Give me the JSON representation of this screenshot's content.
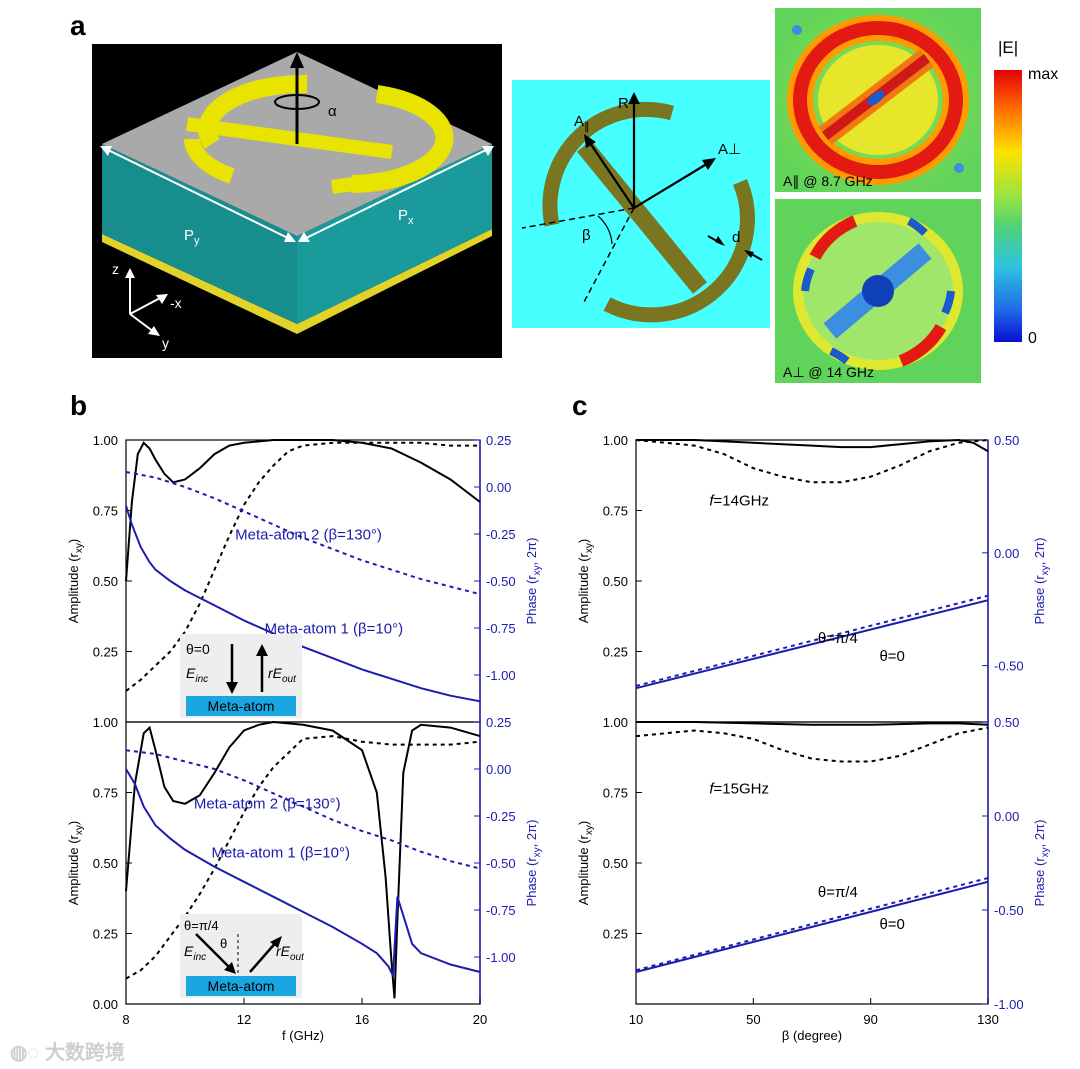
{
  "panel_a": {
    "letter": "a",
    "render": {
      "alpha": "α",
      "py": "P",
      "py_sub": "y",
      "px": "P",
      "px_sub": "x",
      "z": "z",
      "x": "-x",
      "y": "y"
    },
    "schematic": {
      "R": "R",
      "A_par": "A",
      "A_par_sub": "∥",
      "A_perp": "A⊥",
      "beta": "β",
      "d": "d"
    },
    "field_top_label": "A∥ @ 8.7 GHz",
    "field_bottom_label": "A⊥ @ 14 GHz",
    "colorbar": {
      "title": "|E|",
      "max": "max",
      "min": "0"
    }
  },
  "panel_b": {
    "letter": "b"
  },
  "panel_c": {
    "letter": "c"
  },
  "watermark": "大数跨境",
  "chart_data": [
    {
      "id": "b-top",
      "type": "line",
      "xlim": [
        8,
        20
      ],
      "ylim": [
        0,
        1
      ],
      "y2lim": [
        -1.25,
        0.25
      ],
      "yticks": [
        "0.25",
        "0.50",
        "0.75",
        "1.00"
      ],
      "y2ticks": [
        "-1.00",
        "-0.75",
        "-0.50",
        "-0.25",
        "0.00",
        "0.25"
      ],
      "ylabel": "Amplitude (r",
      "ylabel_sub": "xy",
      "y2label": "Phase (r",
      "y2label_sub": "xy",
      "y2label_tail": ", 2π)",
      "series": [
        {
          "axis": "left",
          "color": "#000000",
          "dash": false,
          "x": [
            8,
            8.2,
            8.4,
            8.6,
            8.8,
            9,
            9.3,
            9.6,
            10,
            10.5,
            11,
            11.5,
            12,
            13,
            14,
            15,
            16,
            17,
            18,
            19,
            20
          ],
          "y": [
            0.5,
            0.78,
            0.95,
            0.99,
            0.97,
            0.93,
            0.88,
            0.85,
            0.86,
            0.9,
            0.95,
            0.98,
            0.99,
            1.0,
            1.0,
            1.0,
            0.99,
            0.97,
            0.92,
            0.86,
            0.78
          ]
        },
        {
          "axis": "left",
          "color": "#000000",
          "dash": true,
          "x": [
            8,
            8.5,
            9,
            9.5,
            10,
            10.5,
            11,
            11.5,
            12,
            12.5,
            13,
            13.5,
            14,
            15,
            16,
            17,
            18,
            19,
            20
          ],
          "y": [
            0.11,
            0.15,
            0.2,
            0.25,
            0.32,
            0.42,
            0.54,
            0.66,
            0.77,
            0.85,
            0.91,
            0.96,
            0.98,
            0.99,
            0.99,
            0.99,
            0.99,
            0.98,
            0.98
          ]
        },
        {
          "axis": "right",
          "color": "#1c1cae",
          "dash": true,
          "name": "Meta-atom 2 (β=130°)",
          "x": [
            8,
            9,
            10,
            11,
            12,
            13,
            14,
            15,
            16,
            17,
            18,
            19,
            20
          ],
          "y": [
            0.08,
            0.05,
            0.0,
            -0.06,
            -0.13,
            -0.2,
            -0.27,
            -0.33,
            -0.39,
            -0.44,
            -0.49,
            -0.53,
            -0.57
          ]
        },
        {
          "axis": "right",
          "color": "#1c1cae",
          "dash": false,
          "name": "Meta-atom 1 (β=10°)",
          "x": [
            8,
            8.2,
            8.5,
            8.8,
            9,
            9.5,
            10,
            11,
            12,
            13,
            14,
            15,
            16,
            17,
            18,
            19,
            20
          ],
          "y": [
            -0.1,
            -0.2,
            -0.32,
            -0.4,
            -0.44,
            -0.5,
            -0.55,
            -0.63,
            -0.71,
            -0.78,
            -0.85,
            -0.91,
            -0.97,
            -1.02,
            -1.07,
            -1.11,
            -1.14
          ]
        }
      ],
      "labels": [
        {
          "text": "Meta-atom 2 (β=130°)",
          "color": "#1c1cae",
          "x": 11.7,
          "y2": -0.28
        },
        {
          "text": "Meta-atom 1 (β=10°)",
          "color": "#1c1cae",
          "x": 12.7,
          "y2": -0.78
        }
      ],
      "inset": {
        "theta": "θ=0",
        "e_inc": "E",
        "e_inc_sub": "inc",
        "r_e_out": "rE",
        "r_e_out_sub": "out",
        "meta_atom": "Meta-atom"
      }
    },
    {
      "id": "b-bottom",
      "type": "line",
      "xlim": [
        8,
        20
      ],
      "ylim": [
        0,
        1
      ],
      "y2lim": [
        -1.25,
        0.25
      ],
      "xticks": [
        "8",
        "12",
        "16",
        "20"
      ],
      "xlabel": "f (GHz)",
      "yticks": [
        "0.00",
        "0.25",
        "0.50",
        "0.75",
        "1.00"
      ],
      "y2ticks": [
        "-1.00",
        "-0.75",
        "-0.50",
        "-0.25",
        "0.00",
        "0.25"
      ],
      "ylabel": "Amplitude (r",
      "ylabel_sub": "xy",
      "y2label": "Phase (r",
      "y2label_sub": "xy",
      "y2label_tail": ", 2π)",
      "series": [
        {
          "axis": "left",
          "color": "#000000",
          "dash": false,
          "x": [
            8,
            8.3,
            8.6,
            8.8,
            9,
            9.3,
            9.6,
            10,
            10.5,
            11,
            11.5,
            12,
            12.5,
            13,
            14,
            15,
            16,
            16.5,
            16.8,
            17,
            17.1,
            17.2,
            17.4,
            17.7,
            18,
            19,
            20
          ],
          "y": [
            0.4,
            0.78,
            0.96,
            0.98,
            0.9,
            0.77,
            0.72,
            0.71,
            0.74,
            0.82,
            0.91,
            0.97,
            0.99,
            1.0,
            0.99,
            0.97,
            0.9,
            0.75,
            0.45,
            0.15,
            0.02,
            0.3,
            0.82,
            0.97,
            0.99,
            0.98,
            0.95
          ]
        },
        {
          "axis": "left",
          "color": "#000000",
          "dash": true,
          "x": [
            8,
            8.5,
            9,
            9.5,
            10,
            10.5,
            11,
            11.5,
            12,
            12.5,
            13,
            13.5,
            14,
            15,
            16,
            17,
            18,
            19,
            20
          ],
          "y": [
            0.09,
            0.12,
            0.17,
            0.24,
            0.31,
            0.39,
            0.48,
            0.58,
            0.68,
            0.77,
            0.84,
            0.89,
            0.94,
            0.95,
            0.93,
            0.92,
            0.92,
            0.92,
            0.93
          ]
        },
        {
          "axis": "right",
          "color": "#1c1cae",
          "dash": true,
          "name": "Meta-atom 2 (β=130°)",
          "x": [
            8,
            9,
            10,
            11,
            12,
            13,
            14,
            15,
            16,
            17,
            18,
            19,
            20
          ],
          "y": [
            0.1,
            0.08,
            0.04,
            0.0,
            -0.06,
            -0.13,
            -0.2,
            -0.27,
            -0.33,
            -0.38,
            -0.44,
            -0.49,
            -0.53
          ]
        },
        {
          "axis": "right",
          "color": "#1c1cae",
          "dash": false,
          "name": "Meta-atom 1 (β=10°)",
          "x": [
            8,
            8.3,
            8.6,
            9,
            9.5,
            10,
            11,
            12,
            13,
            14,
            15,
            16,
            16.5,
            16.9,
            17.05,
            17.2,
            17.4,
            17.7,
            18,
            19,
            20
          ],
          "y": [
            0.0,
            -0.08,
            -0.2,
            -0.3,
            -0.37,
            -0.43,
            -0.52,
            -0.6,
            -0.68,
            -0.76,
            -0.84,
            -0.93,
            -0.98,
            -1.05,
            -1.1,
            -0.68,
            -0.78,
            -0.93,
            -0.98,
            -1.04,
            -1.08
          ]
        }
      ],
      "labels": [
        {
          "text": "Meta-atom 2 (β=130°)",
          "color": "#1c1cae",
          "x": 10.3,
          "y2": -0.21
        },
        {
          "text": "Meta-atom 1 (β=10°)",
          "color": "#1c1cae",
          "x": 10.9,
          "y2": -0.47
        }
      ],
      "inset": {
        "theta_eq": "θ=π/4",
        "theta": "θ",
        "e_inc": "E",
        "e_inc_sub": "inc",
        "r_e_out": "rE",
        "r_e_out_sub": "out",
        "meta_atom": "Meta-atom"
      }
    },
    {
      "id": "c-top",
      "type": "line",
      "xlim": [
        10,
        130
      ],
      "ylim": [
        0,
        1
      ],
      "y2lim": [
        -0.75,
        0.5
      ],
      "yticks": [
        "0.25",
        "0.50",
        "0.75",
        "1.00"
      ],
      "y2ticks": [
        "-0.50",
        "0.00",
        "0.50"
      ],
      "ylabel": "Amplitude (r",
      "ylabel_sub": "xy",
      "y2label": "Phase (r",
      "y2label_sub": "xy",
      "y2label_tail": ", 2π)",
      "series": [
        {
          "axis": "left",
          "color": "#000000",
          "dash": false,
          "x": [
            10,
            20,
            30,
            40,
            50,
            60,
            70,
            80,
            90,
            100,
            110,
            120,
            125,
            130
          ],
          "y": [
            1.0,
            1.0,
            1.0,
            0.995,
            0.99,
            0.985,
            0.98,
            0.975,
            0.975,
            0.985,
            0.995,
            1.0,
            0.99,
            0.96
          ]
        },
        {
          "axis": "left",
          "color": "#000000",
          "dash": true,
          "x": [
            10,
            20,
            30,
            40,
            50,
            60,
            70,
            80,
            90,
            100,
            110,
            120,
            130
          ],
          "y": [
            1.0,
            0.99,
            0.98,
            0.95,
            0.9,
            0.87,
            0.85,
            0.85,
            0.87,
            0.91,
            0.96,
            0.99,
            1.0
          ]
        },
        {
          "axis": "right",
          "color": "#1c1cae",
          "dash": false,
          "name": "θ=0",
          "x": [
            10,
            130
          ],
          "y": [
            -0.6,
            -0.21
          ]
        },
        {
          "axis": "right",
          "color": "#1c1cae",
          "dash": true,
          "name": "θ=π/4",
          "x": [
            10,
            130
          ],
          "y": [
            -0.59,
            -0.19
          ]
        }
      ],
      "labels": [
        {
          "text": "f=14GHz",
          "color": "#000000",
          "x": 35,
          "y2": 0.21,
          "italic_prefix": "f"
        },
        {
          "text": "θ=π/4",
          "color": "#000000",
          "x": 72,
          "y2": -0.4
        },
        {
          "text": "θ=0",
          "color": "#000000",
          "x": 93,
          "y2": -0.48
        }
      ]
    },
    {
      "id": "c-bottom",
      "type": "line",
      "xlim": [
        10,
        130
      ],
      "ylim": [
        0,
        1
      ],
      "y2lim": [
        -1.0,
        0.5
      ],
      "xticks": [
        "10",
        "50",
        "90",
        "130"
      ],
      "xlabel": "β (degree)",
      "yticks": [
        "0.25",
        "0.50",
        "0.75",
        "1.00"
      ],
      "y2ticks": [
        "-1.00",
        "-0.50",
        "0.00",
        "0.50"
      ],
      "ylabel": "Amplitude (r",
      "ylabel_sub": "xy",
      "y2label": "Phase (r",
      "y2label_sub": "xy",
      "y2label_tail": ", 2π)",
      "series": [
        {
          "axis": "left",
          "color": "#000000",
          "dash": false,
          "x": [
            10,
            30,
            50,
            70,
            90,
            110,
            120,
            130
          ],
          "y": [
            1.0,
            1.0,
            0.995,
            0.99,
            0.99,
            0.995,
            0.995,
            0.99
          ]
        },
        {
          "axis": "left",
          "color": "#000000",
          "dash": true,
          "x": [
            10,
            20,
            30,
            40,
            50,
            60,
            70,
            80,
            90,
            100,
            110,
            120,
            130
          ],
          "y": [
            0.95,
            0.96,
            0.97,
            0.96,
            0.94,
            0.9,
            0.87,
            0.86,
            0.86,
            0.88,
            0.92,
            0.96,
            0.98
          ]
        },
        {
          "axis": "right",
          "color": "#1c1cae",
          "dash": false,
          "name": "θ=0",
          "x": [
            10,
            130
          ],
          "y": [
            -0.83,
            -0.35
          ]
        },
        {
          "axis": "right",
          "color": "#1c1cae",
          "dash": true,
          "name": "θ=π/4",
          "x": [
            10,
            130
          ],
          "y": [
            -0.82,
            -0.33
          ]
        }
      ],
      "labels": [
        {
          "text": "f=15GHz",
          "color": "#000000",
          "x": 35,
          "y2": 0.12,
          "italic_prefix": "f"
        },
        {
          "text": "θ=π/4",
          "color": "#000000",
          "x": 72,
          "y2": -0.43
        },
        {
          "text": "θ=0",
          "color": "#000000",
          "x": 93,
          "y2": -0.6
        }
      ]
    }
  ]
}
